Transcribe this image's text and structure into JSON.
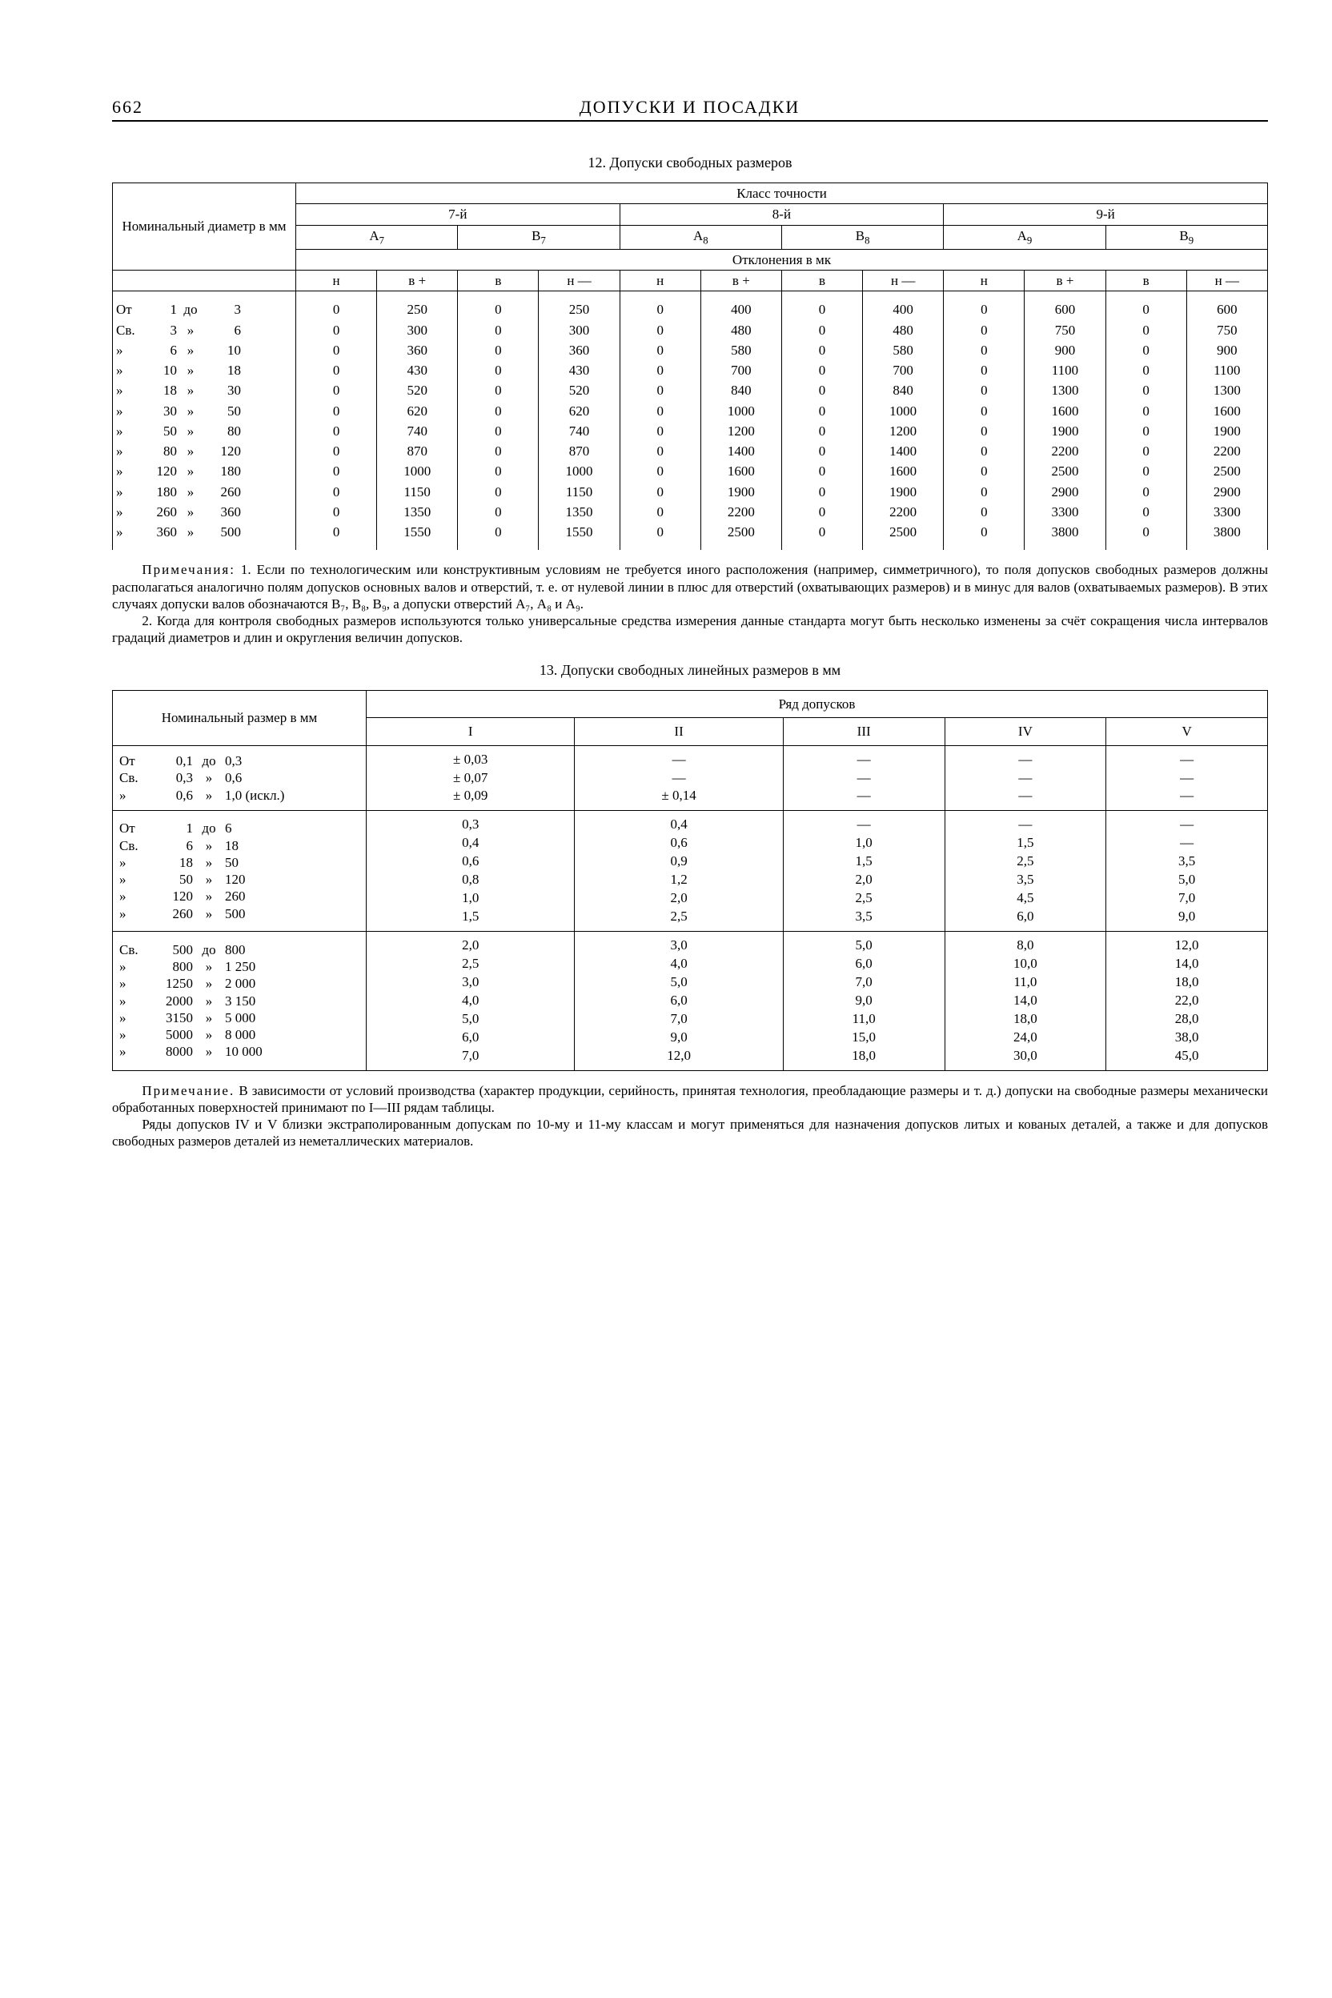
{
  "page_number": "662",
  "running_title": "ДОПУСКИ И ПОСАДКИ",
  "table12": {
    "caption": "12. Допуски свободных размеров",
    "head": {
      "nominal": "Номинальный диаметр в мм",
      "top": "Класс точности",
      "classes": [
        "7-й",
        "8-й",
        "9-й"
      ],
      "fields": [
        "А₇",
        "В₇",
        "А₈",
        "В₈",
        "А₉",
        "В₉"
      ],
      "dev_label": "Отклонения в мк",
      "subcols": [
        "н",
        "в +",
        "в",
        "н —",
        "н",
        "в +",
        "в",
        "н —",
        "н",
        "в +",
        "в",
        "н —"
      ]
    },
    "ranges": [
      {
        "pre": "От",
        "a": "1",
        "mid": "до",
        "b": "3"
      },
      {
        "pre": "Св.",
        "a": "3",
        "mid": "»",
        "b": "6"
      },
      {
        "pre": "»",
        "a": "6",
        "mid": "»",
        "b": "10"
      },
      {
        "pre": "»",
        "a": "10",
        "mid": "»",
        "b": "18"
      },
      {
        "pre": "»",
        "a": "18",
        "mid": "»",
        "b": "30"
      },
      {
        "pre": "»",
        "a": "30",
        "mid": "»",
        "b": "50"
      },
      {
        "pre": "»",
        "a": "50",
        "mid": "»",
        "b": "80"
      },
      {
        "pre": "»",
        "a": "80",
        "mid": "»",
        "b": "120"
      },
      {
        "pre": "»",
        "a": "120",
        "mid": "»",
        "b": "180"
      },
      {
        "pre": "»",
        "a": "180",
        "mid": "»",
        "b": "260"
      },
      {
        "pre": "»",
        "a": "260",
        "mid": "»",
        "b": "360"
      },
      {
        "pre": "»",
        "a": "360",
        "mid": "»",
        "b": "500"
      }
    ],
    "A7_vp": [
      "250",
      "300",
      "360",
      "430",
      "520",
      "620",
      "740",
      "870",
      "1000",
      "1150",
      "1350",
      "1550"
    ],
    "B7_nm": [
      "250",
      "300",
      "360",
      "430",
      "520",
      "620",
      "740",
      "870",
      "1000",
      "1150",
      "1350",
      "1550"
    ],
    "A8_vp": [
      "400",
      "480",
      "580",
      "700",
      "840",
      "1000",
      "1200",
      "1400",
      "1600",
      "1900",
      "2200",
      "2500"
    ],
    "B8_nm": [
      "400",
      "480",
      "580",
      "700",
      "840",
      "1000",
      "1200",
      "1400",
      "1600",
      "1900",
      "2200",
      "2500"
    ],
    "A9_vp": [
      "600",
      "750",
      "900",
      "1100",
      "1300",
      "1600",
      "1900",
      "2200",
      "2500",
      "2900",
      "3300",
      "3800"
    ],
    "B9_nm": [
      "600",
      "750",
      "900",
      "1100",
      "1300",
      "1600",
      "1900",
      "2200",
      "2500",
      "2900",
      "3300",
      "3800"
    ]
  },
  "notes12_label": "Примечания:",
  "notes12_1": "1. Если по технологическим или конструктивным условиям не требуется иного расположения (например, симметричного), то поля допусков свободных размеров должны располагаться аналогично полям допусков основных валов и отверстий, т. е. от нулевой линии в плюс для отверстий (охватывающих размеров) и в минус для валов (охватываемых размеров). В этих случаях допуски валов обозначаются В₇, В₈, В₉, а допуски отверстий А₇, А₈ и А₉.",
  "notes12_2": "2. Когда для контроля свободных размеров используются только универсальные средства измерения данные стандарта могут быть несколько изменены за счёт сокращения числа интервалов градаций диаметров и длин и округления величин допусков.",
  "table13": {
    "caption": "13. Допуски свободных линейных размеров в мм",
    "head": {
      "nominal": "Номинальный размер в мм",
      "top": "Ряд допусков",
      "cols": [
        "I",
        "II",
        "III",
        "IV",
        "V"
      ]
    },
    "groups": [
      {
        "ranges": [
          {
            "pre": "От",
            "a": "0,1",
            "mid": "до",
            "b": "0,3"
          },
          {
            "pre": "Св.",
            "a": "0,3",
            "mid": "»",
            "b": "0,6"
          },
          {
            "pre": "»",
            "a": "0,6",
            "mid": "»",
            "b": "1,0 (искл.)"
          }
        ],
        "I": [
          "± 0,03",
          "± 0,07",
          "± 0,09"
        ],
        "II": [
          "—",
          "—",
          "± 0,14"
        ],
        "III": [
          "—",
          "—",
          "—"
        ],
        "IV": [
          "—",
          "—",
          "—"
        ],
        "V": [
          "—",
          "—",
          "—"
        ]
      },
      {
        "ranges": [
          {
            "pre": "От",
            "a": "1",
            "mid": "до",
            "b": "6"
          },
          {
            "pre": "Св.",
            "a": "6",
            "mid": "»",
            "b": "18"
          },
          {
            "pre": "»",
            "a": "18",
            "mid": "»",
            "b": "50"
          },
          {
            "pre": "»",
            "a": "50",
            "mid": "»",
            "b": "120"
          },
          {
            "pre": "»",
            "a": "120",
            "mid": "»",
            "b": "260"
          },
          {
            "pre": "»",
            "a": "260",
            "mid": "»",
            "b": "500"
          }
        ],
        "I": [
          "0,3",
          "0,4",
          "0,6",
          "0,8",
          "1,0",
          "1,5"
        ],
        "II": [
          "0,4",
          "0,6",
          "0,9",
          "1,2",
          "2,0",
          "2,5"
        ],
        "III": [
          "—",
          "1,0",
          "1,5",
          "2,0",
          "2,5",
          "3,5"
        ],
        "IV": [
          "—",
          "1,5",
          "2,5",
          "3,5",
          "4,5",
          "6,0"
        ],
        "V": [
          "—",
          "—",
          "3,5",
          "5,0",
          "7,0",
          "9,0"
        ]
      },
      {
        "ranges": [
          {
            "pre": "Св.",
            "a": "500",
            "mid": "до",
            "b": "800"
          },
          {
            "pre": "»",
            "a": "800",
            "mid": "»",
            "b": "1 250"
          },
          {
            "pre": "»",
            "a": "1250",
            "mid": "»",
            "b": "2 000"
          },
          {
            "pre": "»",
            "a": "2000",
            "mid": "»",
            "b": "3 150"
          },
          {
            "pre": "»",
            "a": "3150",
            "mid": "»",
            "b": "5 000"
          },
          {
            "pre": "»",
            "a": "5000",
            "mid": "»",
            "b": "8 000"
          },
          {
            "pre": "»",
            "a": "8000",
            "mid": "»",
            "b": "10 000"
          }
        ],
        "I": [
          "2,0",
          "2,5",
          "3,0",
          "4,0",
          "5,0",
          "6,0",
          "7,0"
        ],
        "II": [
          "3,0",
          "4,0",
          "5,0",
          "6,0",
          "7,0",
          "9,0",
          "12,0"
        ],
        "III": [
          "5,0",
          "6,0",
          "7,0",
          "9,0",
          "11,0",
          "15,0",
          "18,0"
        ],
        "IV": [
          "8,0",
          "10,0",
          "11,0",
          "14,0",
          "18,0",
          "24,0",
          "30,0"
        ],
        "V": [
          "12,0",
          "14,0",
          "18,0",
          "22,0",
          "28,0",
          "38,0",
          "45,0"
        ]
      }
    ]
  },
  "notes13_label": "Примечание.",
  "notes13_1": "В зависимости от условий производства (характер продукции, серийность, принятая технология, преобладающие размеры и т. д.) допуски на свободные размеры механически обработанных поверхностей принимают по I—III рядам таблицы.",
  "notes13_2": "Ряды допусков IV и V близки экстраполированным допускам по 10-му и 11-му классам и могут применяться для назначения допусков литых и кованых деталей, а также и для допусков свободных размеров деталей из неметаллических материалов."
}
